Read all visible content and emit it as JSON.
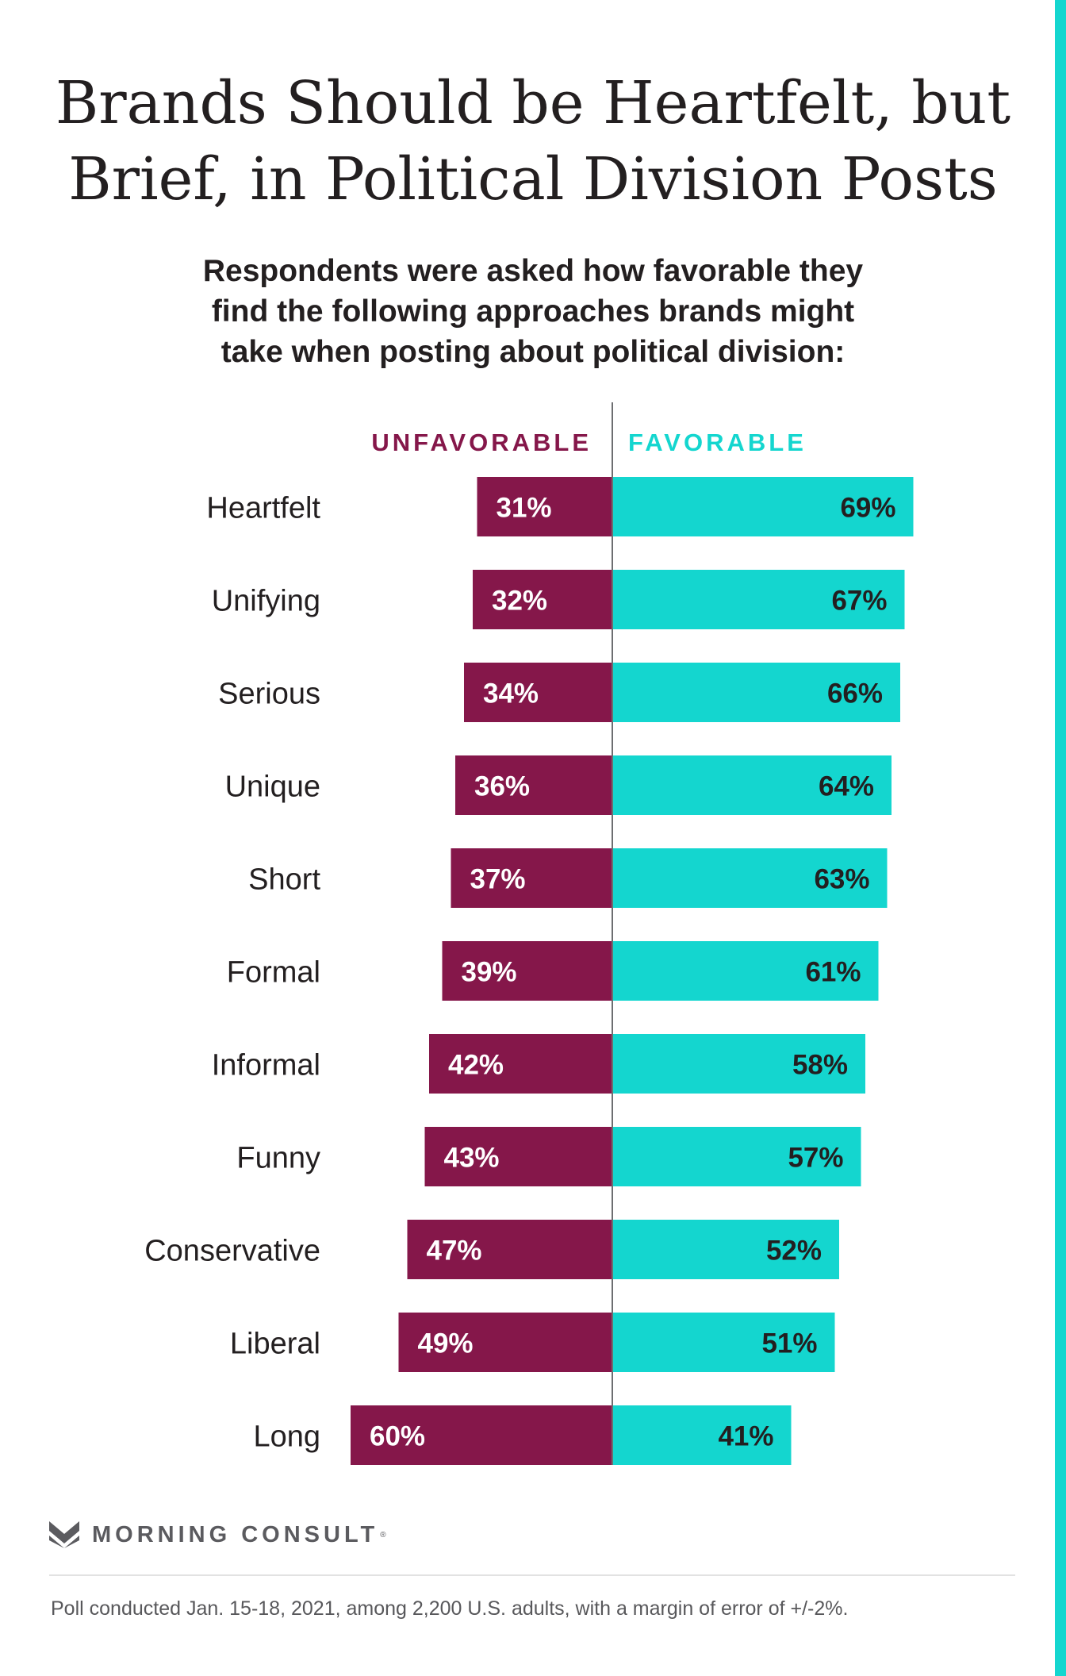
{
  "header": {
    "title_line1": "Brands Should be Heartfelt, but",
    "title_line2": "Brief, in Political Division Posts",
    "subtitle_line1": "Respondents were asked how favorable they",
    "subtitle_line2": "find the following approaches brands might",
    "subtitle_line3": "take when posting about political division:"
  },
  "chart_data": {
    "type": "bar",
    "orientation": "horizontal-diverging",
    "categories": [
      "Heartfelt",
      "Unifying",
      "Serious",
      "Unique",
      "Short",
      "Formal",
      "Informal",
      "Funny",
      "Conservative",
      "Liberal",
      "Long"
    ],
    "series": [
      {
        "name": "UNFAVORABLE",
        "values": [
          31,
          32,
          34,
          36,
          37,
          39,
          42,
          43,
          47,
          49,
          60
        ],
        "color": "#85174a"
      },
      {
        "name": "FAVORABLE",
        "values": [
          69,
          67,
          66,
          64,
          63,
          61,
          58,
          57,
          52,
          51,
          41
        ],
        "color": "#14d6cf"
      }
    ],
    "value_suffix": "%",
    "legend_placement": "top",
    "grid": false
  },
  "brand": {
    "name": "MORNING CONSULT",
    "mark": "®",
    "icon": "morning-consult-logo-icon"
  },
  "footnote": "Poll conducted Jan. 15-18, 2021, among 2,200 U.S. adults, with a margin of error of +/-2%.",
  "colors": {
    "unfavorable": "#85174a",
    "favorable": "#14d6cf",
    "text": "#231f20",
    "accent_stripe": "#14d6cf"
  }
}
